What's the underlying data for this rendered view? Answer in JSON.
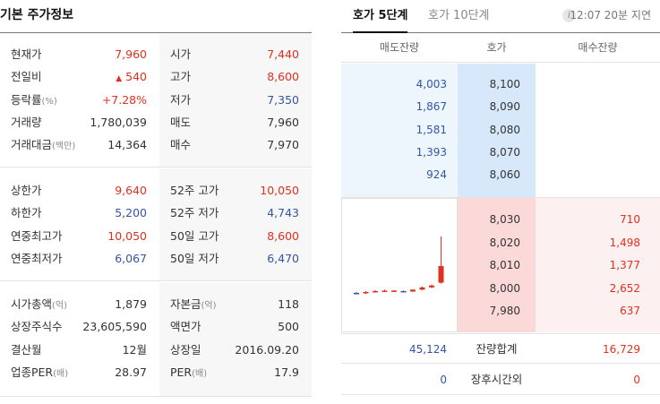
{
  "left": {
    "title": "기본 주가정보",
    "section1": [
      {
        "l1": "현재가",
        "v1": "7,960",
        "c1": "red",
        "l2": "시가",
        "v2": "7,440",
        "c2": "red"
      },
      {
        "l1": "전일비",
        "v1": "540",
        "v1_prefix": "▲",
        "c1": "red",
        "l2": "고가",
        "v2": "8,600",
        "c2": "red"
      },
      {
        "l1": "등락률",
        "l1_unit": "(%)",
        "v1": "+7.28%",
        "c1": "red",
        "l2": "저가",
        "v2": "7,350",
        "c2": "blue"
      },
      {
        "l1": "거래량",
        "v1": "1,780,039",
        "c1": "",
        "l2": "매도",
        "v2": "7,960",
        "c2": ""
      },
      {
        "l1": "거래대금",
        "l1_unit": "(백만)",
        "v1": "14,364",
        "c1": "",
        "l2": "매수",
        "v2": "7,970",
        "c2": ""
      }
    ],
    "section2": [
      {
        "l1": "상한가",
        "v1": "9,640",
        "c1": "red",
        "l2": "52주 고가",
        "v2": "10,050",
        "c2": "red"
      },
      {
        "l1": "하한가",
        "v1": "5,200",
        "c1": "blue",
        "l2": "52주 저가",
        "v2": "4,743",
        "c2": "blue"
      },
      {
        "l1": "연중최고가",
        "v1": "10,050",
        "c1": "red",
        "l2": "50일 고가",
        "v2": "8,600",
        "c2": "red"
      },
      {
        "l1": "연중최저가",
        "v1": "6,067",
        "c1": "blue",
        "l2": "50일 저가",
        "v2": "6,470",
        "c2": "blue"
      }
    ],
    "section3": [
      {
        "l1": "시가총액",
        "l1_unit": "(억)",
        "v1": "1,879",
        "c1": "",
        "l2": "자본금",
        "l2_unit": "(억)",
        "v2": "118",
        "c2": ""
      },
      {
        "l1": "상장주식수",
        "v1": "23,605,590",
        "c1": "",
        "l2": "액면가",
        "v2": "500",
        "c2": ""
      },
      {
        "l1": "결산월",
        "v1": "12월",
        "c1": "",
        "l2": "상장일",
        "v2": "2016.09.20",
        "c2": ""
      },
      {
        "l1": "업종PER",
        "l1_unit": "(배)",
        "v1": "28.97",
        "c1": "",
        "l2": "PER",
        "l2_unit": "(배)",
        "v2": "17.9",
        "c2": ""
      }
    ]
  },
  "right": {
    "tabs": [
      "호가 5단계",
      "호가 10단계"
    ],
    "info_icon": "i",
    "delay_text": "12:07 20분 지연",
    "headers": [
      "매도잔량",
      "호가",
      "매수잔량"
    ],
    "asks": [
      {
        "qty": "4,003",
        "price": "8,100"
      },
      {
        "qty": "1,867",
        "price": "8,090"
      },
      {
        "qty": "1,581",
        "price": "8,080"
      },
      {
        "qty": "1,393",
        "price": "8,070"
      },
      {
        "qty": "924",
        "price": "8,060"
      }
    ],
    "bids": [
      {
        "price": "8,030",
        "qty": "710"
      },
      {
        "price": "8,020",
        "qty": "1,498"
      },
      {
        "price": "8,010",
        "qty": "1,377"
      },
      {
        "price": "8,000",
        "qty": "2,652"
      },
      {
        "price": "7,980",
        "qty": "637"
      }
    ],
    "total": {
      "ask": "45,124",
      "label": "잔량합계",
      "bid": "16,729"
    },
    "after_hours": {
      "ask": "0",
      "label": "장후시간외",
      "bid": "0"
    },
    "candles": [
      {
        "o": 7380,
        "h": 7400,
        "l": 7360,
        "c": 7370
      },
      {
        "o": 7370,
        "h": 7420,
        "l": 7360,
        "c": 7400
      },
      {
        "o": 7400,
        "h": 7440,
        "l": 7390,
        "c": 7420
      },
      {
        "o": 7410,
        "h": 7450,
        "l": 7400,
        "c": 7430
      },
      {
        "o": 7420,
        "h": 7440,
        "l": 7400,
        "c": 7430
      },
      {
        "o": 7420,
        "h": 7430,
        "l": 7390,
        "c": 7400
      },
      {
        "o": 7410,
        "h": 7460,
        "l": 7400,
        "c": 7450
      },
      {
        "o": 7450,
        "h": 7520,
        "l": 7440,
        "c": 7500
      },
      {
        "o": 7500,
        "h": 7560,
        "l": 7480,
        "c": 7540
      },
      {
        "o": 7600,
        "h": 8600,
        "l": 7580,
        "c": 7960
      }
    ]
  }
}
